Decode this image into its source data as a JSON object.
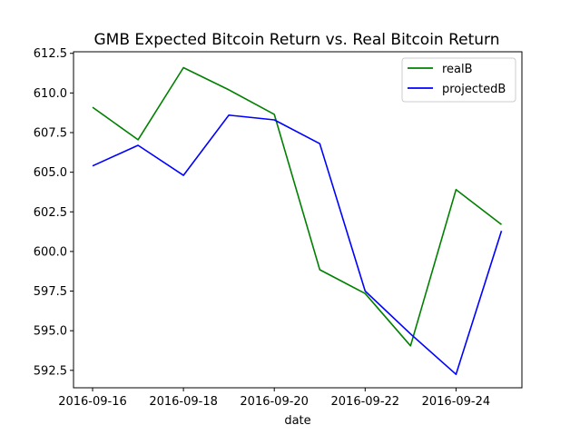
{
  "chart_data": {
    "type": "line",
    "title": "GMB Expected Bitcoin Return vs. Real Bitcoin Return",
    "xlabel": "date",
    "ylabel": "",
    "x": [
      "2016-09-16",
      "2016-09-17",
      "2016-09-18",
      "2016-09-19",
      "2016-09-20",
      "2016-09-21",
      "2016-09-22",
      "2016-09-23",
      "2016-09-24",
      "2016-09-25"
    ],
    "x_ticks": [
      "2016-09-16",
      "2016-09-18",
      "2016-09-20",
      "2016-09-22",
      "2016-09-24"
    ],
    "y_ticks": [
      "592.5",
      "595.0",
      "597.5",
      "600.0",
      "602.5",
      "605.0",
      "607.5",
      "610.0",
      "612.5"
    ],
    "ylim": [
      591.4,
      612.6
    ],
    "grid": false,
    "legend_position": "top-right",
    "series": [
      {
        "name": "realB",
        "color": "#008000",
        "values": [
          609.1,
          607.05,
          611.6,
          610.2,
          608.65,
          598.85,
          597.35,
          594.05,
          603.9,
          601.7
        ]
      },
      {
        "name": "projectedB",
        "color": "#0000ff",
        "values": [
          605.4,
          606.7,
          604.8,
          608.6,
          608.3,
          606.8,
          597.5,
          594.8,
          592.25,
          601.3
        ]
      }
    ]
  }
}
